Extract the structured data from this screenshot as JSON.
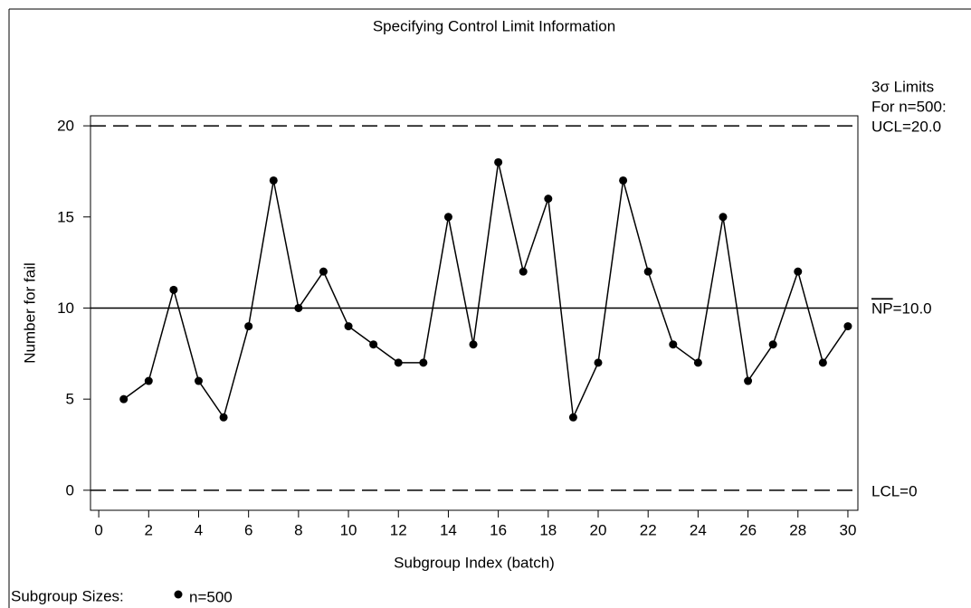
{
  "chart_data": {
    "type": "line",
    "title": "Specifying Control Limit Information",
    "x_label": "Subgroup Index (batch)",
    "y_label": "Number for fail",
    "x": [
      1,
      2,
      3,
      4,
      5,
      6,
      7,
      8,
      9,
      10,
      11,
      12,
      13,
      14,
      15,
      16,
      17,
      18,
      19,
      20,
      21,
      22,
      23,
      24,
      25,
      26,
      27,
      28,
      29,
      30
    ],
    "series": [
      {
        "name": "n=500",
        "color": "#000000",
        "values": [
          5,
          6,
          11,
          6,
          4,
          9,
          17,
          10,
          12,
          9,
          8,
          7,
          7,
          15,
          8,
          18,
          12,
          16,
          4,
          7,
          17,
          12,
          8,
          7,
          15,
          6,
          8,
          12,
          7,
          9
        ]
      }
    ],
    "legend_title": "Subgroup Sizes:",
    "xlim": [
      -0.33,
      30.4
    ],
    "xticks": [
      0,
      2,
      4,
      6,
      8,
      10,
      12,
      14,
      16,
      18,
      20,
      22,
      24,
      26,
      28,
      30
    ],
    "ylim": [
      -1.1,
      20.55
    ],
    "yticks": [
      0,
      5,
      10,
      15,
      20
    ],
    "limits": {
      "heading": "3σ  Limits",
      "subheading": "For n=500:",
      "ucl": 20,
      "ucl_label": "UCL=20.0",
      "center": 10,
      "center_symbol": "NP",
      "center_text": "=10.0",
      "lcl": 0,
      "lcl_label": "LCL=0"
    }
  }
}
